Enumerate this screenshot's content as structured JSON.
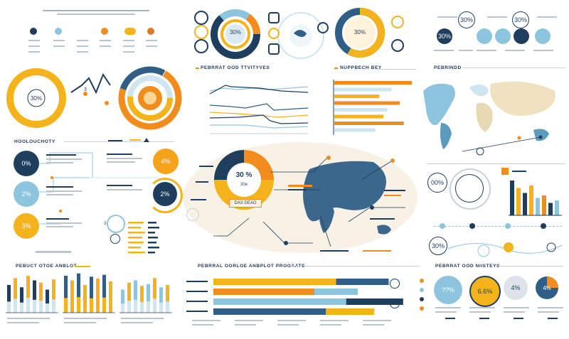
{
  "colors": {
    "navy": "#1f3d5c",
    "orange": "#f28c1c",
    "yellow": "#f5b31b",
    "lightblue": "#8ec5de",
    "paleblue": "#cfe6f1",
    "teal": "#2f5f86",
    "grey": "#c9d1d8"
  },
  "headings": {
    "personal_objectives": "PEBRRAT OOD TTVITYVES",
    "numbers": "NUPPBECH BEY",
    "persona": "PEBRINDD",
    "productivity": "HOOLOUCHOTY",
    "product_analysis": "PEBUCT OTOE ANBLOT",
    "personal_product": "PEBRRAL OORLOE ANBPLOT PROOAATE",
    "personal_monitors": "PEBRRAT OOD NIISTEYS"
  },
  "percent_labels": {
    "ring_left": "30%",
    "ring_top_right": "30%",
    "ring_top_yellow": "30%",
    "right_top_1": "30%",
    "right_top_2": "30%",
    "right_top_3": "30%",
    "left_bubble_1": "0%",
    "left_bubble_2": "2%",
    "left_bubble_3": "3%",
    "mid_bubble_1": "4%",
    "mid_bubble_2": "2%",
    "center_big": "30 %",
    "center_sub": "30e",
    "center_box": "DAS DEAO",
    "right_bubble_1": "00%",
    "right_bubble_2": "30%",
    "bottom_bubble_1": "??%",
    "bottom_bubble_2": "6.6%",
    "bottom_bubble_3": "4%",
    "bottom_bubble_4": "4%",
    "small_3a": "3",
    "small_3b": "3"
  },
  "chart_data": [
    {
      "type": "bar",
      "title": "NUPPBECH BEY",
      "orientation": "horizontal",
      "values": [
        95,
        70,
        55,
        80,
        65,
        60,
        85,
        50
      ]
    },
    {
      "type": "bar",
      "title": "PEBUCT OTOE ANBLOT",
      "series": [
        {
          "name": "",
          "values": [
            60,
            75,
            55,
            80,
            70,
            65,
            50,
            72
          ]
        },
        {
          "name": "",
          "values": [
            80,
            70,
            85,
            60,
            78,
            74,
            82,
            68
          ]
        },
        {
          "name": "",
          "values": [
            50,
            65,
            70,
            58,
            62,
            75,
            55,
            60
          ]
        }
      ]
    },
    {
      "type": "bar",
      "title": "PEBRRAL OORLOE ANBPLOT PROOAATE",
      "orientation": "horizontal",
      "values": [
        85,
        70,
        92,
        78
      ]
    },
    {
      "type": "bar",
      "values": [
        70,
        55,
        45,
        60,
        35,
        40,
        25,
        30
      ]
    }
  ]
}
